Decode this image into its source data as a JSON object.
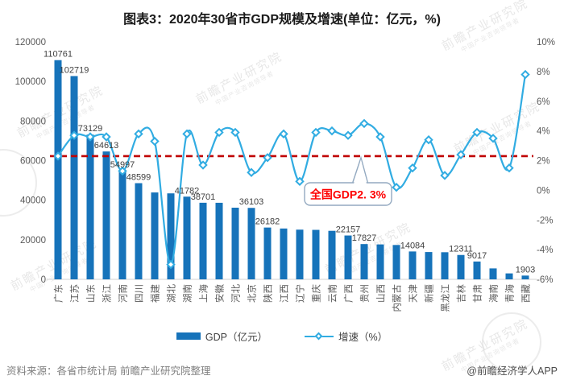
{
  "page": {
    "title": "图表3：2020年30省市GDP规模及增速(单位：亿元，%)",
    "source_note": "资料来源：各省市统计局 前瞻产业研究院整理",
    "brand": "@前瞻经济学人APP",
    "watermark_text": "前瞻产业研究院",
    "watermark_subtext": "中国产业咨询领导者"
  },
  "legend": {
    "gdp_label": "GDP（亿元）",
    "growth_label": "增速（%）"
  },
  "annotation": {
    "label": "全国GDP2. 3%",
    "value": 2.3
  },
  "colors": {
    "bar": "#1673BA",
    "line": "#31ACE2",
    "marker_fill": "#ffffff",
    "reference_line": "#C00000",
    "annotation_text": "#FE0000",
    "callout_border": "#93A9C0",
    "axis_text": "#595959",
    "bar_label_text": "#3F3F3F",
    "baseline": "#d9d9d9"
  },
  "chart_data": {
    "type": "bar",
    "title": "图表3：2020年30省市GDP规模及增速(单位：亿元，%)",
    "categories": [
      "广东",
      "江苏",
      "山东",
      "浙江",
      "河南",
      "四川",
      "福建",
      "湖北",
      "湖南",
      "上海",
      "安徽",
      "河北",
      "北京",
      "陕西",
      "江西",
      "辽宁",
      "重庆",
      "云南",
      "广西",
      "贵州",
      "山西",
      "内蒙古",
      "天津",
      "新疆",
      "黑龙江",
      "吉林",
      "甘肃",
      "海南",
      "青海",
      "西藏"
    ],
    "series": [
      {
        "name": "GDP（亿元）",
        "type": "bar",
        "axis": "left",
        "values": [
          110761,
          102719,
          73129,
          64613,
          54997,
          48599,
          43904,
          43443,
          41782,
          38701,
          38681,
          36207,
          36103,
          26182,
          25692,
          25115,
          25003,
          24522,
          22157,
          17827,
          17652,
          17360,
          14084,
          13798,
          13699,
          12311,
          9017,
          5532,
          3006,
          1903
        ],
        "data_labels": [
          "110761",
          "102719",
          "73129",
          "64613",
          "54997",
          "48599",
          null,
          null,
          "41782",
          "38701",
          null,
          null,
          "36103",
          "26182",
          null,
          null,
          null,
          null,
          "22157",
          "17827",
          null,
          null,
          "14084",
          null,
          null,
          "12311",
          "9017",
          null,
          null,
          "1903"
        ]
      },
      {
        "name": "增速（%）",
        "type": "line",
        "axis": "right",
        "values": [
          2.3,
          3.7,
          3.6,
          3.6,
          1.3,
          3.8,
          3.3,
          -5.0,
          3.8,
          1.7,
          3.9,
          3.9,
          1.2,
          2.2,
          3.8,
          0.6,
          3.9,
          4.0,
          3.7,
          4.5,
          3.6,
          0.2,
          1.5,
          3.4,
          1.0,
          2.4,
          3.9,
          3.5,
          1.5,
          7.8
        ]
      }
    ],
    "left_axis": {
      "min": 0,
      "max": 120000,
      "step": 20000,
      "tick_labels": [
        "120000",
        "100000",
        "80000",
        "60000",
        "40000",
        "20000",
        "0"
      ]
    },
    "right_axis": {
      "min": -6,
      "max": 10,
      "step": 2,
      "tick_labels": [
        "10%",
        "8%",
        "6%",
        "4%",
        "2%",
        "0%",
        "-2%",
        "-4%",
        "-6%"
      ]
    },
    "reference_line": {
      "value": 2.3,
      "label": "全国GDP2. 3%"
    },
    "grid": false,
    "legend_position": "bottom"
  }
}
